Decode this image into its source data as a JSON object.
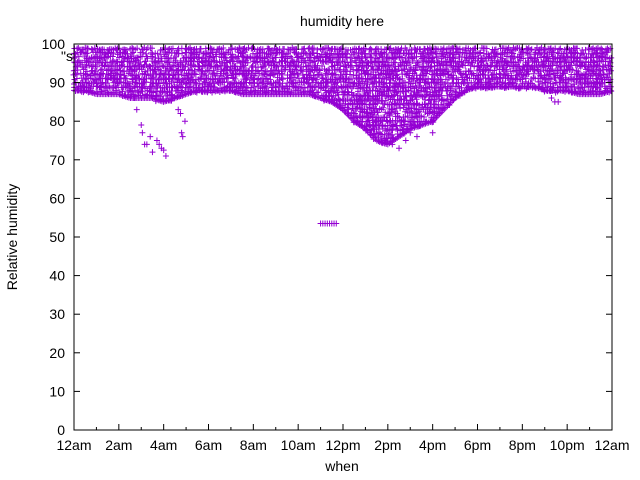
{
  "chart_data": {
    "type": "scatter",
    "title": "humidity here",
    "xlabel": "when",
    "ylabel": "Relative humidity",
    "legend_fragment": "\"s",
    "x_ticks": [
      "12am",
      "2am",
      "4am",
      "6am",
      "8am",
      "10am",
      "12pm",
      "2pm",
      "4pm",
      "6pm",
      "8pm",
      "10pm",
      "12am"
    ],
    "x_tick_hours": [
      0,
      2,
      4,
      6,
      8,
      10,
      12,
      14,
      16,
      18,
      20,
      22,
      24
    ],
    "y_ticks": [
      "0",
      "10",
      "20",
      "30",
      "40",
      "50",
      "60",
      "70",
      "80",
      "90",
      "100"
    ],
    "xlim_hours": [
      0,
      24
    ],
    "ylim": [
      0,
      100
    ],
    "marker": "+",
    "series_color": "#9400d3",
    "band_hours": [
      0,
      0.5,
      1,
      1.5,
      2,
      2.5,
      3,
      3.5,
      4,
      4.5,
      5,
      5.5,
      6,
      6.5,
      7,
      7.5,
      8,
      8.5,
      9,
      9.5,
      10,
      10.5,
      11,
      11.5,
      12,
      12.5,
      13,
      13.5,
      14,
      14.5,
      15,
      15.5,
      16,
      16.5,
      17,
      17.5,
      18,
      18.5,
      19,
      19.5,
      20,
      20.5,
      21,
      21.5,
      22,
      22.5,
      23,
      23.5,
      24
    ],
    "band_low": [
      88,
      88,
      87,
      87,
      87,
      86,
      86,
      86,
      85,
      86,
      87,
      88,
      88,
      88,
      88,
      87,
      87,
      87,
      87,
      87,
      87,
      87,
      86,
      85,
      83,
      80,
      78,
      75,
      74,
      76,
      78,
      79,
      80,
      83,
      86,
      88,
      89,
      89,
      89,
      89,
      89,
      89,
      88,
      88,
      88,
      87,
      87,
      87,
      88
    ],
    "band_high": [
      99,
      99,
      99,
      99,
      99,
      99,
      99,
      99,
      99,
      99,
      99,
      99,
      99,
      99,
      99,
      99,
      99,
      99,
      99,
      99,
      99,
      99,
      99,
      99,
      99,
      99,
      99,
      99,
      99,
      99,
      99,
      99,
      99,
      99,
      99,
      99,
      99,
      99,
      99,
      99,
      99,
      99,
      99,
      99,
      99,
      99,
      99,
      99,
      99
    ],
    "outliers": [
      {
        "x": 2.6,
        "y": 91
      },
      {
        "x": 2.7,
        "y": 86
      },
      {
        "x": 2.8,
        "y": 83
      },
      {
        "x": 3.0,
        "y": 79
      },
      {
        "x": 3.05,
        "y": 77
      },
      {
        "x": 3.15,
        "y": 74
      },
      {
        "x": 3.25,
        "y": 74
      },
      {
        "x": 3.4,
        "y": 76
      },
      {
        "x": 3.5,
        "y": 72
      },
      {
        "x": 3.7,
        "y": 75
      },
      {
        "x": 3.8,
        "y": 74
      },
      {
        "x": 3.9,
        "y": 73
      },
      {
        "x": 4.0,
        "y": 72.5
      },
      {
        "x": 4.1,
        "y": 71
      },
      {
        "x": 4.65,
        "y": 83
      },
      {
        "x": 4.75,
        "y": 82
      },
      {
        "x": 4.8,
        "y": 77
      },
      {
        "x": 4.85,
        "y": 76
      },
      {
        "x": 4.95,
        "y": 80
      },
      {
        "x": 11.0,
        "y": 53.5
      },
      {
        "x": 11.1,
        "y": 53.5
      },
      {
        "x": 11.2,
        "y": 53.5
      },
      {
        "x": 11.3,
        "y": 53.5
      },
      {
        "x": 11.4,
        "y": 53.5
      },
      {
        "x": 11.5,
        "y": 53.5
      },
      {
        "x": 11.6,
        "y": 53.5
      },
      {
        "x": 11.7,
        "y": 53.5
      },
      {
        "x": 13.2,
        "y": 79
      },
      {
        "x": 13.4,
        "y": 78
      },
      {
        "x": 13.6,
        "y": 77
      },
      {
        "x": 13.9,
        "y": 75
      },
      {
        "x": 14.2,
        "y": 74
      },
      {
        "x": 14.5,
        "y": 73
      },
      {
        "x": 14.8,
        "y": 75
      },
      {
        "x": 15.0,
        "y": 77
      },
      {
        "x": 15.3,
        "y": 76
      },
      {
        "x": 16.0,
        "y": 77
      },
      {
        "x": 21.3,
        "y": 86
      },
      {
        "x": 21.45,
        "y": 85
      },
      {
        "x": 21.6,
        "y": 85
      }
    ]
  }
}
